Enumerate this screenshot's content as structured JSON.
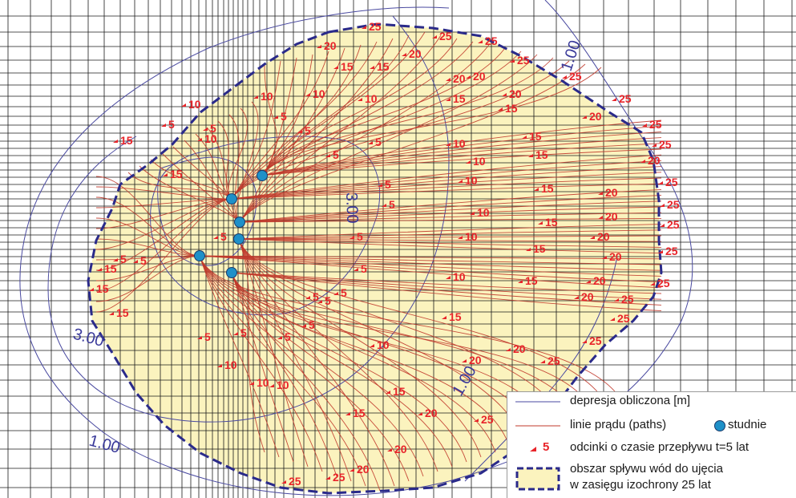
{
  "isoline_labels": [
    "1.00",
    "3.00",
    "3.00",
    "1.00",
    "1.00"
  ],
  "time_labels": [
    "25",
    "25",
    "25",
    "25",
    "25",
    "25",
    "25",
    "25",
    "25",
    "25",
    "25",
    "25",
    "25",
    "25",
    "25",
    "25",
    "25",
    "25",
    "25",
    "25",
    "20",
    "20",
    "20",
    "20",
    "20",
    "20",
    "20",
    "20",
    "20",
    "20",
    "20",
    "20",
    "20",
    "20",
    "20",
    "20",
    "20",
    "20",
    "15",
    "15",
    "15",
    "15",
    "15",
    "15",
    "15",
    "15",
    "15",
    "15",
    "15",
    "15",
    "15",
    "15",
    "15",
    "15",
    "15",
    "15",
    "10",
    "10",
    "10",
    "10",
    "10",
    "10",
    "10",
    "10",
    "10",
    "10",
    "10",
    "10",
    "10",
    "10",
    "10",
    "5",
    "5",
    "5",
    "5",
    "5",
    "5",
    "5",
    "5",
    "5",
    "5",
    "5",
    "5",
    "5",
    "5",
    "5",
    "5",
    "5",
    "5",
    "5",
    "5"
  ],
  "legend": {
    "depresja": "depresja obliczona [m]",
    "linie": "linie prądu (paths)",
    "studnie": "studnie",
    "odcinki_num": "5",
    "odcinki": "odcinki o czasie przepływu t=5 lat",
    "obszar_line1": "obszar spływu wód do ujęcia",
    "obszar_line2": "w zasięgu izochrony 25 lat"
  },
  "colors": {
    "grid": "#1a1a1a",
    "capture_fill": "#fbf3be",
    "capture_border": "#2a2a8a",
    "pathline": "#c0392b",
    "label_red": "#e8242a",
    "isoline": "#4a4aa0",
    "well": "#1e90c8"
  }
}
